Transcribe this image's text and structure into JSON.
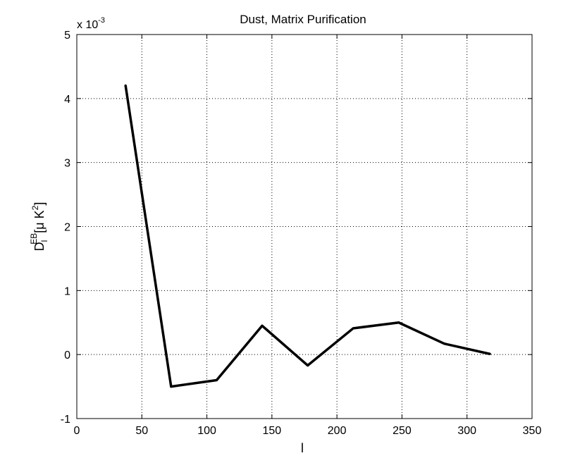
{
  "chart_data": {
    "type": "line",
    "title": "Dust, Matrix Purification",
    "xlabel": "l",
    "ylabel": {
      "base": "D",
      "sub": "l",
      "sup": "EB",
      "unit_prefix": "[μ K",
      "unit_sup": "2",
      "unit_suffix": "]"
    },
    "y_multiplier": {
      "prefix": "x 10",
      "exponent": "-3"
    },
    "xlim": [
      0,
      350
    ],
    "ylim": [
      -1,
      5
    ],
    "x_ticks": [
      0,
      50,
      100,
      150,
      200,
      250,
      300,
      350
    ],
    "y_ticks": [
      -1,
      0,
      1,
      2,
      3,
      4,
      5
    ],
    "x_tick_labels": [
      "0",
      "50",
      "100",
      "150",
      "200",
      "250",
      "300",
      "350"
    ],
    "y_tick_labels": [
      "-1",
      "0",
      "1",
      "2",
      "3",
      "4",
      "5"
    ],
    "grid": true,
    "series": [
      {
        "x": [
          37.5,
          72.5,
          107.5,
          142.5,
          177.5,
          212.5,
          247.5,
          282.5,
          317.5
        ],
        "y": [
          4.2,
          -0.5,
          -0.4,
          0.45,
          -0.17,
          0.41,
          0.5,
          0.17,
          0.01
        ],
        "color": "#000000"
      }
    ]
  }
}
